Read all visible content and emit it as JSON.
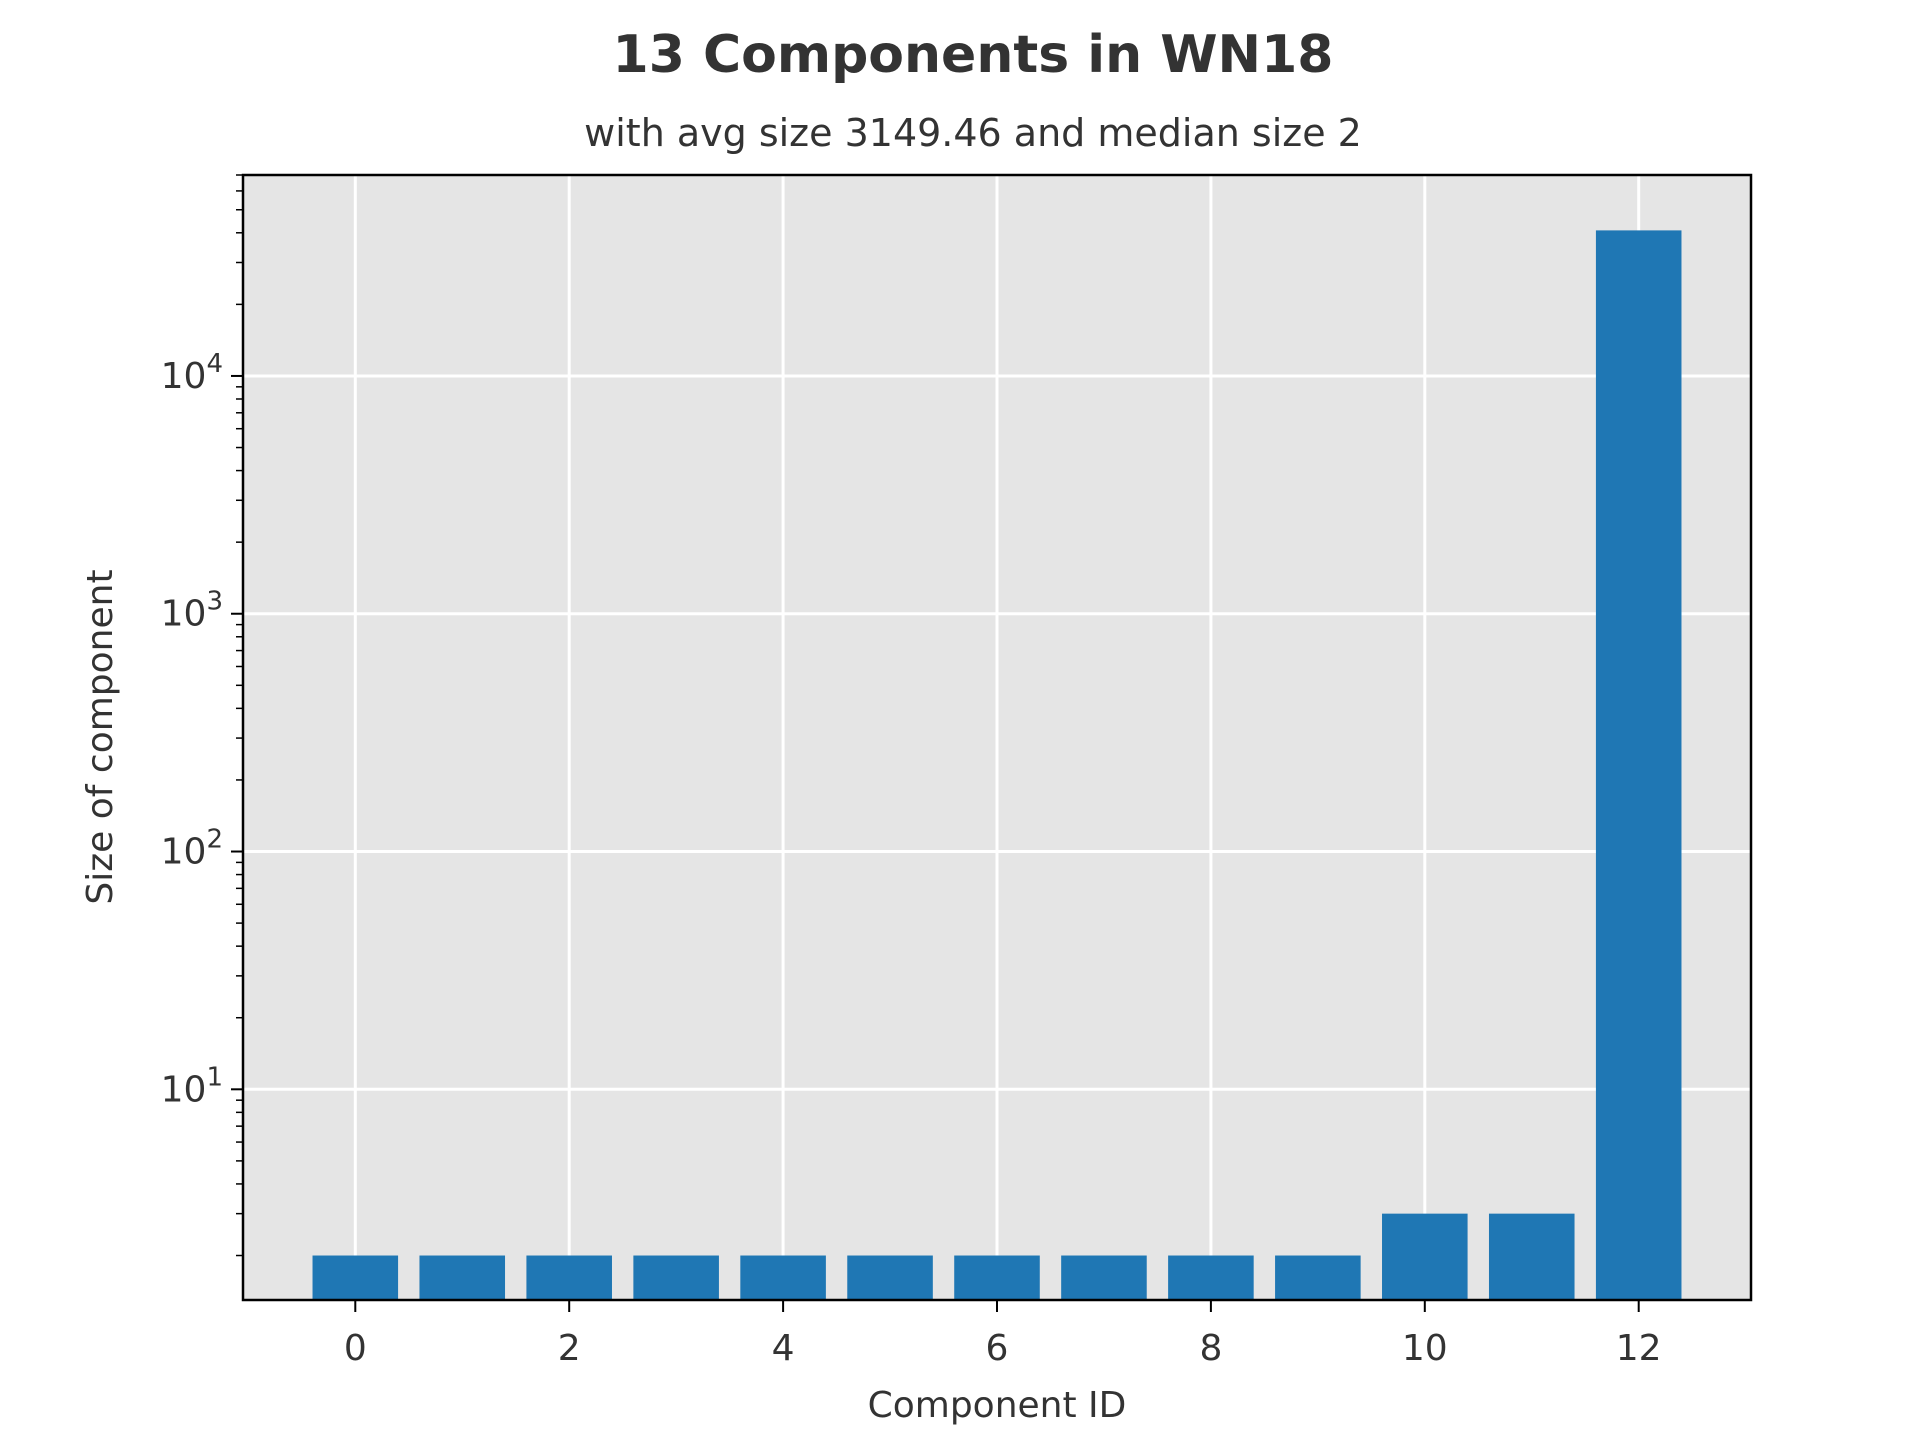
{
  "chart_data": {
    "type": "bar",
    "title": "13 Components in WN18",
    "subtitle": "with avg size 3149.46 and median size 2",
    "xlabel": "Component ID",
    "ylabel": "Size of component",
    "yscale": "log",
    "ylim": [
      1.3,
      70000
    ],
    "xlim": [
      -1.05,
      13.05
    ],
    "categories": [
      0,
      1,
      2,
      3,
      4,
      5,
      6,
      7,
      8,
      9,
      10,
      11,
      12
    ],
    "values": [
      2,
      2,
      2,
      2,
      2,
      2,
      2,
      2,
      2,
      2,
      3,
      3,
      40943
    ],
    "xticks": [
      0,
      2,
      4,
      6,
      8,
      10,
      12
    ],
    "yticks": [
      {
        "value": 10,
        "base": "10",
        "exp": "1"
      },
      {
        "value": 100,
        "base": "10",
        "exp": "2"
      },
      {
        "value": 1000,
        "base": "10",
        "exp": "3"
      },
      {
        "value": 10000,
        "base": "10",
        "exp": "4"
      }
    ],
    "grid": true,
    "colors": {
      "bar": "#1f77b4",
      "plot_background": "#e5e5e5",
      "grid": "#ffffff",
      "text": "#333333",
      "axes": "#000000"
    }
  }
}
